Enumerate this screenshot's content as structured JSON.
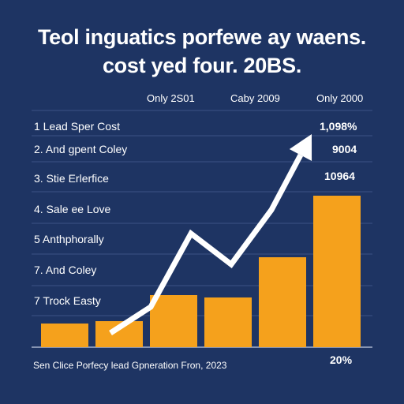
{
  "title_lines": [
    "Teol inguatics porfewe ay waens.",
    "cost yed four. 20BS."
  ],
  "column_headers": [
    "Only 2S01",
    "Caby 2009",
    "Only 2000"
  ],
  "row_labels": [
    "1 Lead Sper Cost",
    "2. And gpent Coley",
    "3. Stie Erlerfice",
    "4. Sale ee Love",
    "5  Anthphorally",
    "7. And Coley",
    "7  Trock Easty"
  ],
  "value_labels": [
    "1,098%",
    "9004",
    "10964",
    "20%"
  ],
  "footnote": "Sen Clice Porfecy lead Gpneration Fron, 2023",
  "colors": {
    "background": "#1e3463",
    "bar": "#f5a11c",
    "gridline": "#3c5284",
    "baseline": "#a9b4cc",
    "arrow": "#ffffff"
  },
  "chart_data": {
    "type": "bar",
    "title": "Teol inguatics porfewe ay waens. cost yed four. 20BS.",
    "bar_count": 6,
    "values": [
      1.0,
      1.1,
      2.2,
      2.1,
      3.8,
      6.4
    ],
    "ylim": [
      0,
      7
    ],
    "trend_arrow": {
      "y": [
        0.6,
        1.7,
        4.8,
        3.5,
        5.8,
        9.0
      ]
    },
    "grid": true
  }
}
